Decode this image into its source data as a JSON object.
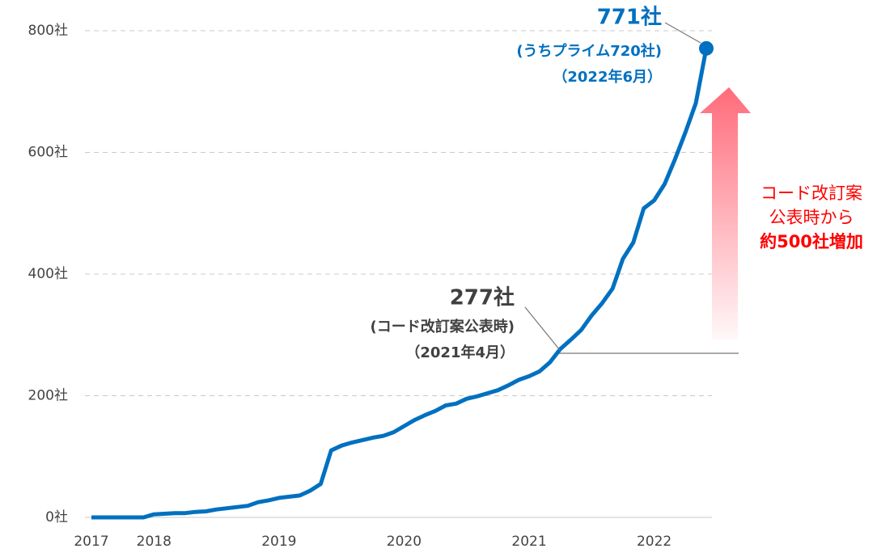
{
  "chart_data": {
    "type": "line",
    "categories": [
      "2017",
      null,
      null,
      null,
      null,
      null,
      "2018",
      null,
      null,
      null,
      null,
      null,
      null,
      null,
      null,
      null,
      null,
      null,
      "2019",
      null,
      null,
      null,
      null,
      null,
      null,
      null,
      null,
      null,
      null,
      null,
      "2020",
      null,
      null,
      null,
      null,
      null,
      null,
      null,
      null,
      null,
      null,
      null,
      "2021",
      null,
      null,
      null,
      null,
      null,
      null,
      null,
      null,
      null,
      null,
      null,
      "2022",
      null,
      null,
      null,
      null,
      null
    ],
    "values": [
      0,
      0,
      0,
      0,
      0,
      0,
      5,
      6,
      7,
      7,
      9,
      10,
      13,
      15,
      17,
      19,
      25,
      28,
      32,
      34,
      36,
      44,
      55,
      110,
      118,
      123,
      127,
      131,
      134,
      140,
      150,
      160,
      168,
      175,
      184,
      187,
      195,
      199,
      204,
      209,
      217,
      226,
      232,
      240,
      255,
      277,
      292,
      308,
      332,
      352,
      376,
      425,
      452,
      508,
      521,
      548,
      589,
      633,
      681,
      771
    ],
    "color": "#0070c0",
    "ylim": [
      0,
      800
    ],
    "yticks": [
      {
        "value": 0,
        "label": "0社"
      },
      {
        "value": 200,
        "label": "200社"
      },
      {
        "value": 400,
        "label": "400社"
      },
      {
        "value": 600,
        "label": "600社"
      },
      {
        "value": 800,
        "label": "800社"
      }
    ],
    "grid": true,
    "annotations": [
      "771社",
      "(うちプライム720社)",
      "（2022年6月）",
      "277社",
      "(コード改訂案公表時)",
      "（2021年4月）",
      "コード改訂案",
      "公表時から",
      "約500社増加"
    ]
  }
}
